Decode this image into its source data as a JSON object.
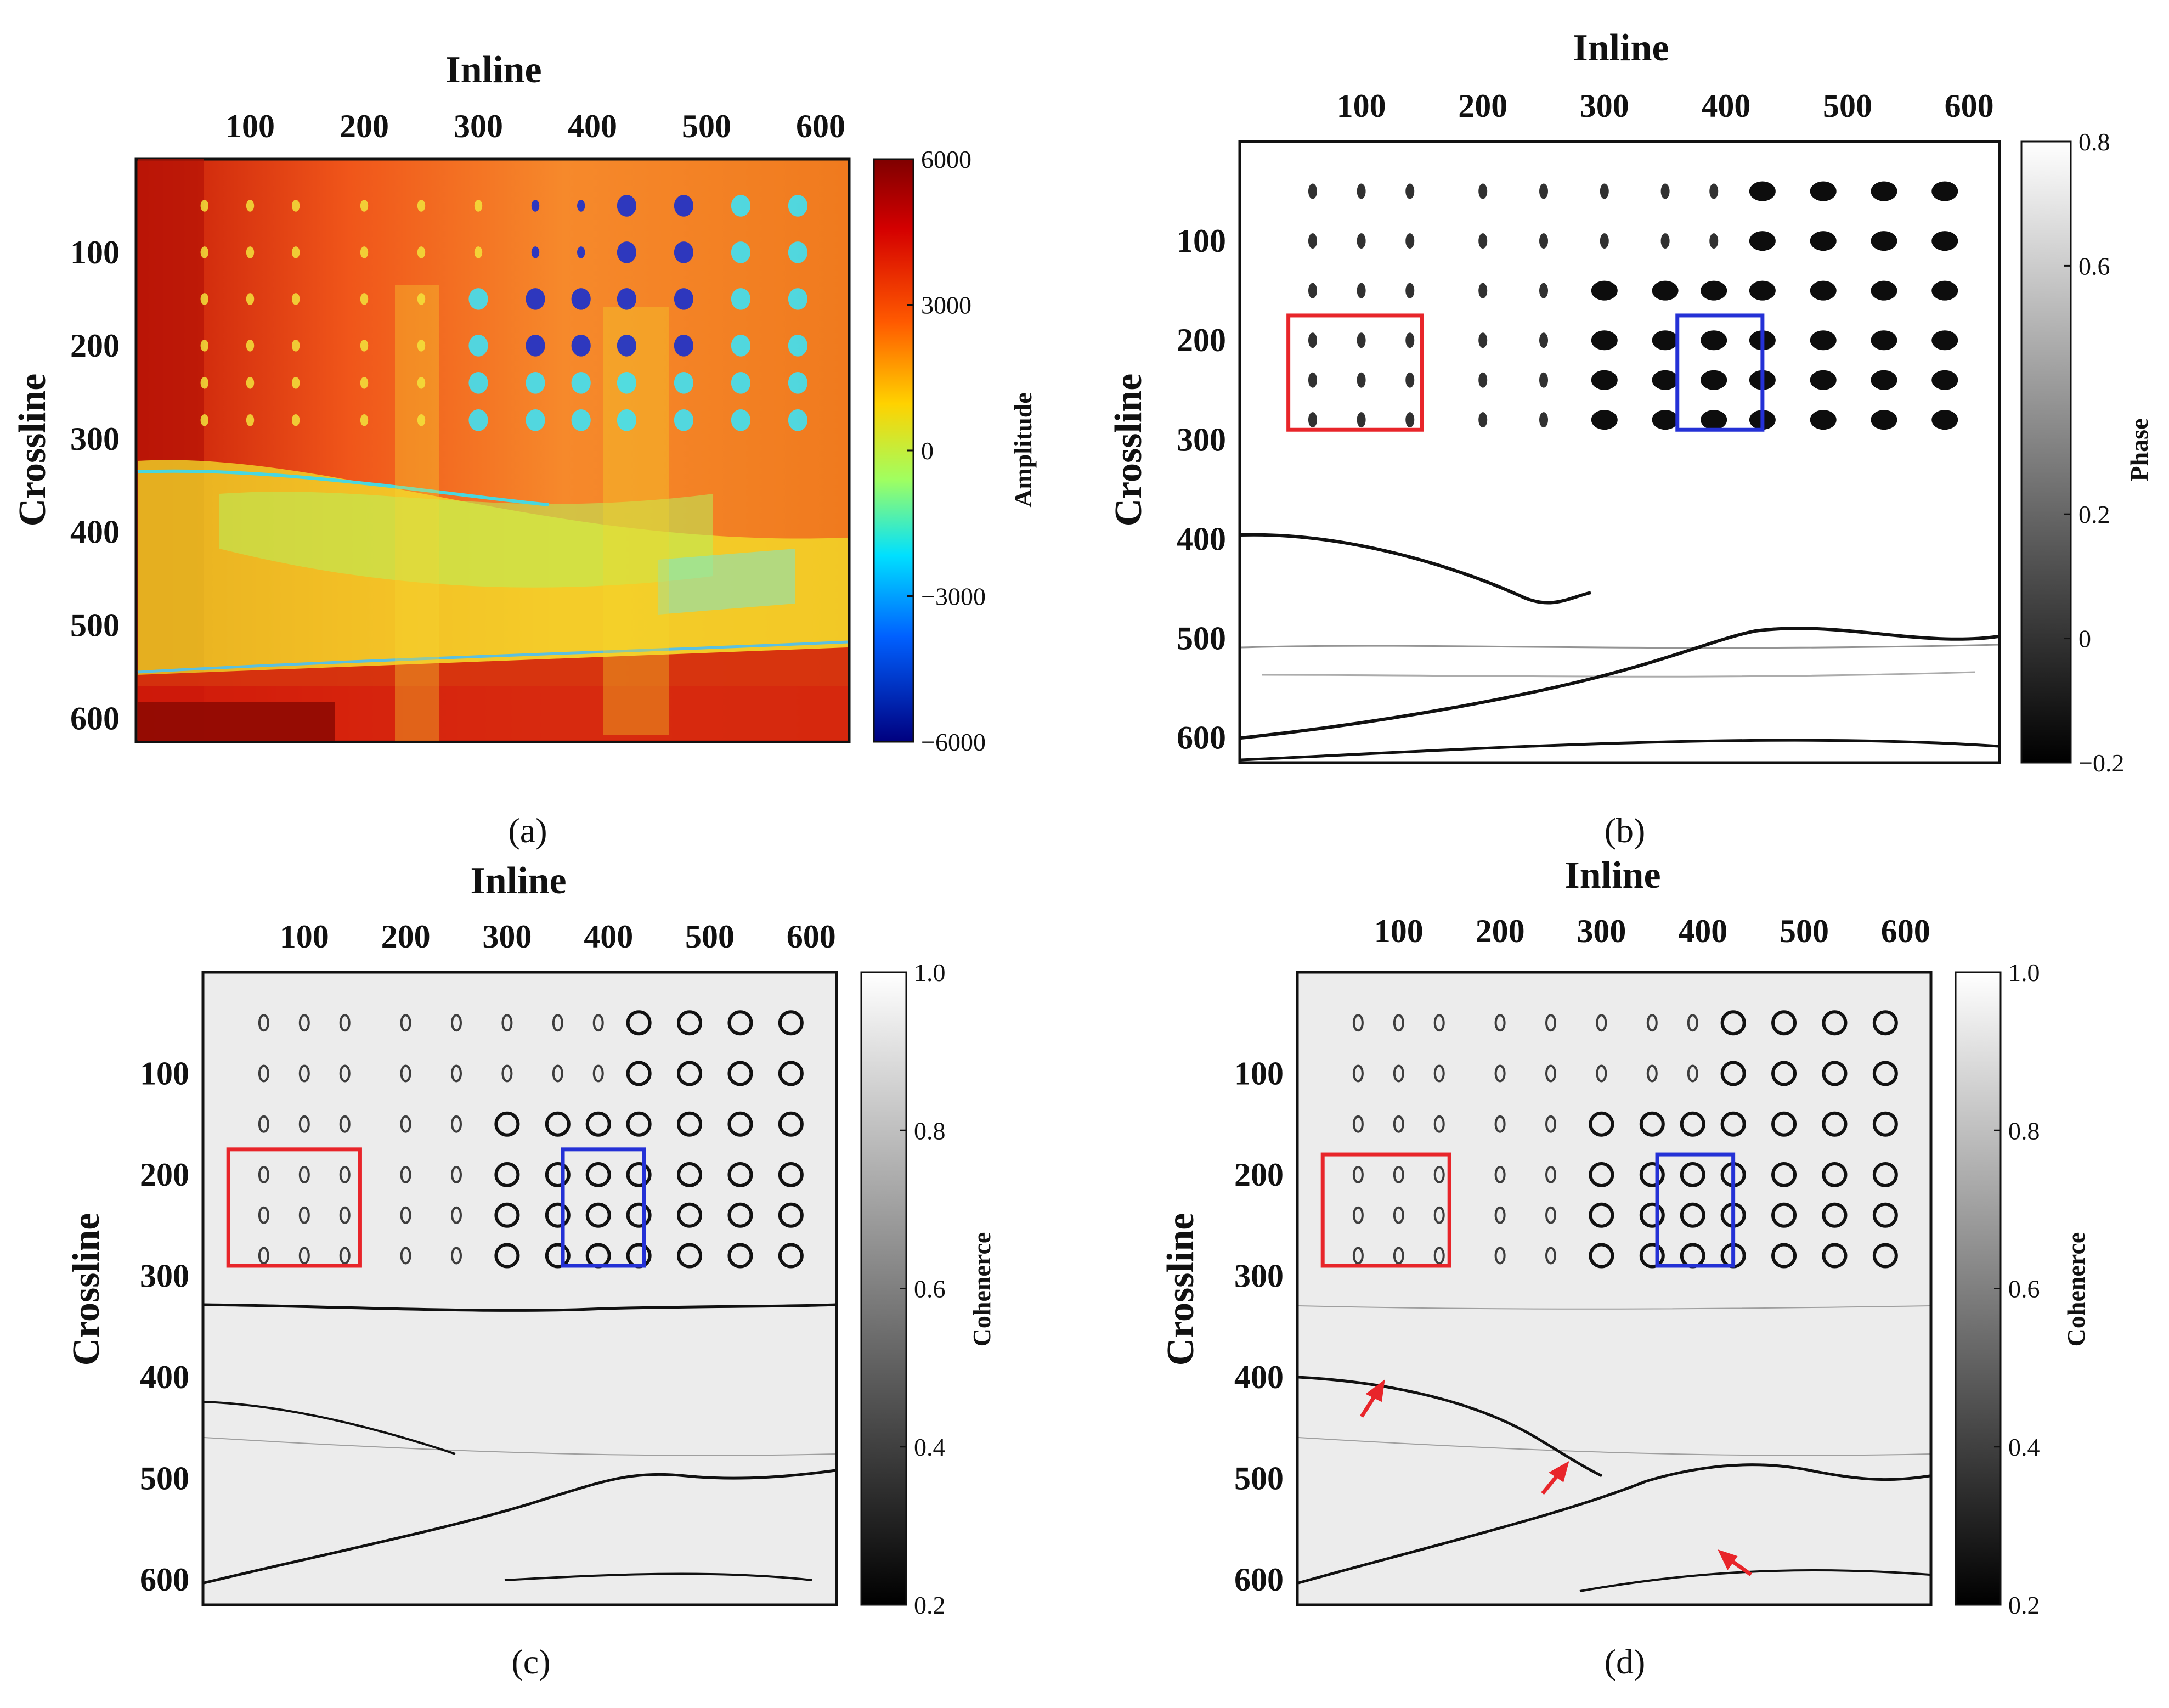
{
  "chart_data": [
    {
      "type": "heatmap",
      "panel_label": "(a)",
      "title": "Inline",
      "xlabel": "Inline",
      "ylabel": "Crossline",
      "x_ticks": [
        "100",
        "200",
        "300",
        "400",
        "500",
        "600"
      ],
      "y_ticks": [
        "100",
        "200",
        "300",
        "400",
        "500",
        "600"
      ],
      "xlim": [
        0,
        625
      ],
      "ylim": [
        0,
        625
      ],
      "colorbar": {
        "label": "Amplitude",
        "colormap": "jet",
        "range": [
          -6000,
          6000
        ],
        "ticks": [
          "6000",
          "3000",
          "0",
          "−3000",
          "−6000"
        ]
      },
      "overlays": []
    },
    {
      "type": "heatmap",
      "panel_label": "(b)",
      "title": "Inline",
      "xlabel": "Inline",
      "ylabel": "Crossline",
      "x_ticks": [
        "100",
        "200",
        "300",
        "400",
        "500",
        "600"
      ],
      "y_ticks": [
        "100",
        "200",
        "300",
        "400",
        "500",
        "600"
      ],
      "xlim": [
        0,
        625
      ],
      "ylim": [
        0,
        625
      ],
      "colorbar": {
        "label": "Phase",
        "colormap": "gray",
        "range": [
          -0.2,
          0.8
        ],
        "ticks": [
          "0.8",
          "0.6",
          "0.2",
          "0",
          "−0.2"
        ]
      },
      "overlays": [
        {
          "name": "red-box",
          "color": "#e8252a",
          "inline": [
            40,
            150
          ],
          "crossline": [
            175,
            290
          ]
        },
        {
          "name": "blue-box",
          "color": "#2431d6",
          "inline": [
            360,
            430
          ],
          "crossline": [
            175,
            290
          ]
        }
      ]
    },
    {
      "type": "heatmap",
      "panel_label": "(c)",
      "title": "Inline",
      "xlabel": "Inline",
      "ylabel": "Crossline",
      "x_ticks": [
        "100",
        "200",
        "300",
        "400",
        "500",
        "600"
      ],
      "y_ticks": [
        "100",
        "200",
        "300",
        "400",
        "500",
        "600"
      ],
      "xlim": [
        0,
        625
      ],
      "ylim": [
        0,
        625
      ],
      "colorbar": {
        "label": "Cohenerce",
        "colormap": "gray",
        "range": [
          0.2,
          1.0
        ],
        "ticks": [
          "1.0",
          "0.8",
          "0.6",
          "0.4",
          "0.2"
        ]
      },
      "overlays": [
        {
          "name": "red-box",
          "color": "#e8252a",
          "inline": [
            25,
            155
          ],
          "crossline": [
            175,
            290
          ]
        },
        {
          "name": "blue-box",
          "color": "#2431d6",
          "inline": [
            355,
            435
          ],
          "crossline": [
            175,
            290
          ]
        }
      ]
    },
    {
      "type": "heatmap",
      "panel_label": "(d)",
      "title": "Inline",
      "xlabel": "Inline",
      "ylabel": "Crossline",
      "x_ticks": [
        "100",
        "200",
        "300",
        "400",
        "500",
        "600"
      ],
      "y_ticks": [
        "100",
        "200",
        "300",
        "400",
        "500",
        "600"
      ],
      "xlim": [
        0,
        625
      ],
      "ylim": [
        0,
        625
      ],
      "colorbar": {
        "label": "Cohenerce",
        "colormap": "gray",
        "range": [
          0.2,
          1.0
        ],
        "ticks": [
          "1.0",
          "0.8",
          "0.6",
          "0.4",
          "0.2"
        ]
      },
      "overlays": [
        {
          "name": "red-box",
          "color": "#e8252a",
          "inline": [
            25,
            150
          ],
          "crossline": [
            180,
            290
          ]
        },
        {
          "name": "blue-box",
          "color": "#2431d6",
          "inline": [
            355,
            430
          ],
          "crossline": [
            180,
            290
          ]
        }
      ]
    }
  ]
}
